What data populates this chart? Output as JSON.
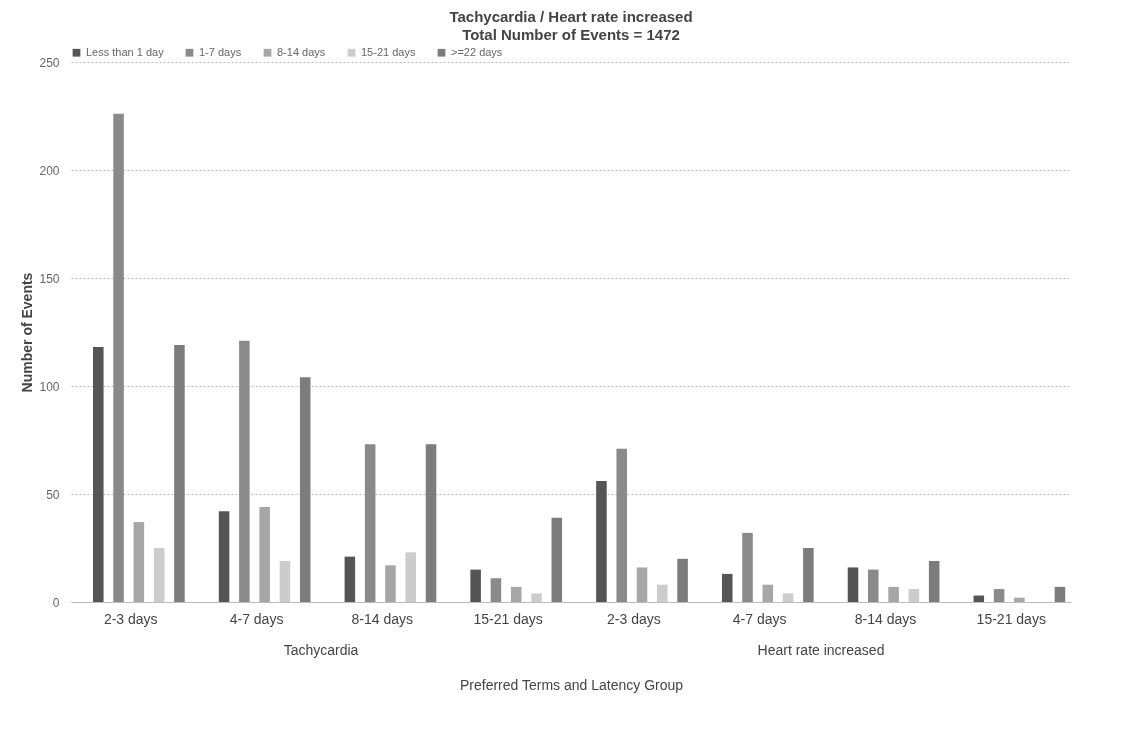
{
  "chart_data": {
    "type": "bar",
    "title": "Tachycardia / Heart rate increased",
    "subtitle": "Total Number of Events = 1472",
    "xlabel": "Preferred Terms and Latency Group",
    "ylabel": "Number of Events",
    "categories": [
      "2-3 days",
      "4-7 days",
      "8-14 days",
      "15-21 days",
      "2-3 days",
      "4-7 days",
      "8-14 days",
      "15-21 days"
    ],
    "series": [
      {
        "name": "Less than 1 day",
        "color": "#555555",
        "values": [
          118,
          42,
          21,
          15,
          56,
          13,
          16,
          3
        ]
      },
      {
        "name": "1-7 days",
        "color": "#8a8a8a",
        "values": [
          226,
          121,
          73,
          11,
          71,
          32,
          15,
          6
        ]
      },
      {
        "name": "8-14 days",
        "color": "#a6a6a6",
        "values": [
          37,
          44,
          17,
          7,
          16,
          8,
          7,
          2
        ]
      },
      {
        "name": "15-21 days",
        "color": "#cccccc",
        "values": [
          25,
          19,
          23,
          4,
          8,
          4,
          6,
          0
        ]
      },
      {
        "name": ">=22 days",
        "color": "#7c7c7c",
        "values": [
          119,
          104,
          73,
          39,
          20,
          25,
          19,
          7
        ]
      }
    ],
    "annotations": [
      "Tachycardia",
      "Heart rate increased"
    ],
    "ylim": [
      0,
      250
    ],
    "yticks": [
      0,
      50,
      100,
      150,
      200,
      250
    ],
    "grid": "y",
    "legend": "top"
  }
}
